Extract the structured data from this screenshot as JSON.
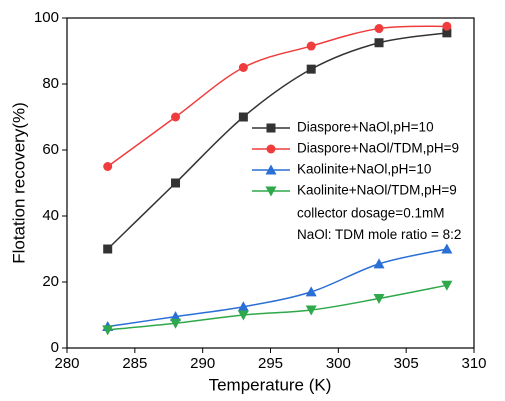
{
  "chart_data": {
    "type": "line",
    "xlabel": "Temperature (K)",
    "ylabel": "Flotation recovery(%)",
    "x": [
      283,
      288,
      293,
      298,
      303,
      308
    ],
    "xlim": [
      280,
      310
    ],
    "xticks": [
      280,
      285,
      290,
      295,
      300,
      305,
      310
    ],
    "ylim": [
      0,
      100
    ],
    "yticks": [
      0,
      20,
      40,
      60,
      80,
      100
    ],
    "series": [
      {
        "name": "Diaspore+NaOl,pH=10",
        "color": "#333333",
        "marker": "square",
        "values": [
          30,
          50,
          70,
          84.5,
          92.5,
          95.5
        ]
      },
      {
        "name": "Diaspore+NaOl/TDM,pH=9",
        "color": "#f03c3c",
        "marker": "circle",
        "values": [
          55,
          70,
          85,
          91.5,
          96.8,
          97.5
        ]
      },
      {
        "name": "Kaolinite+NaOl,pH=10",
        "color": "#2a6fd6",
        "marker": "triangle-up",
        "values": [
          6.5,
          9.5,
          12.5,
          17,
          25.5,
          30
        ]
      },
      {
        "name": "Kaolinite+NaOl/TDM,pH=9",
        "color": "#2ea84a",
        "marker": "triangle-down",
        "values": [
          5.5,
          7.5,
          10,
          11.5,
          15,
          19
        ]
      }
    ],
    "annotations": [
      "collector dosage=0.1mM",
      "NaOl: TDM mole ratio = 8:2"
    ],
    "legend": "right"
  }
}
